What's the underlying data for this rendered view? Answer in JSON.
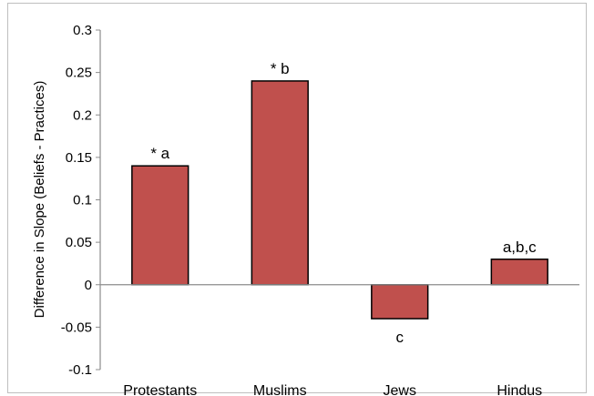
{
  "chart_data": {
    "type": "bar",
    "categories": [
      "Protestants",
      "Muslims",
      "Jews",
      "Hindus"
    ],
    "values": [
      0.14,
      0.24,
      -0.04,
      0.03
    ],
    "data_labels": [
      "* a",
      "* b",
      "c",
      "a,b,c"
    ],
    "title": "",
    "xlabel": "",
    "ylabel": "Difference in Slope (Beliefs - Practices)",
    "ylim": [
      -0.1,
      0.3
    ],
    "yticks": [
      "-0.1",
      "-0.05",
      "0",
      "0.05",
      "0.1",
      "0.15",
      "0.2",
      "0.25",
      "0.3"
    ],
    "grid": false,
    "legend": "none",
    "colors": {
      "bar_fill": "#c0504d",
      "bar_stroke": "#000000",
      "axis": "#8c8c8c"
    }
  }
}
